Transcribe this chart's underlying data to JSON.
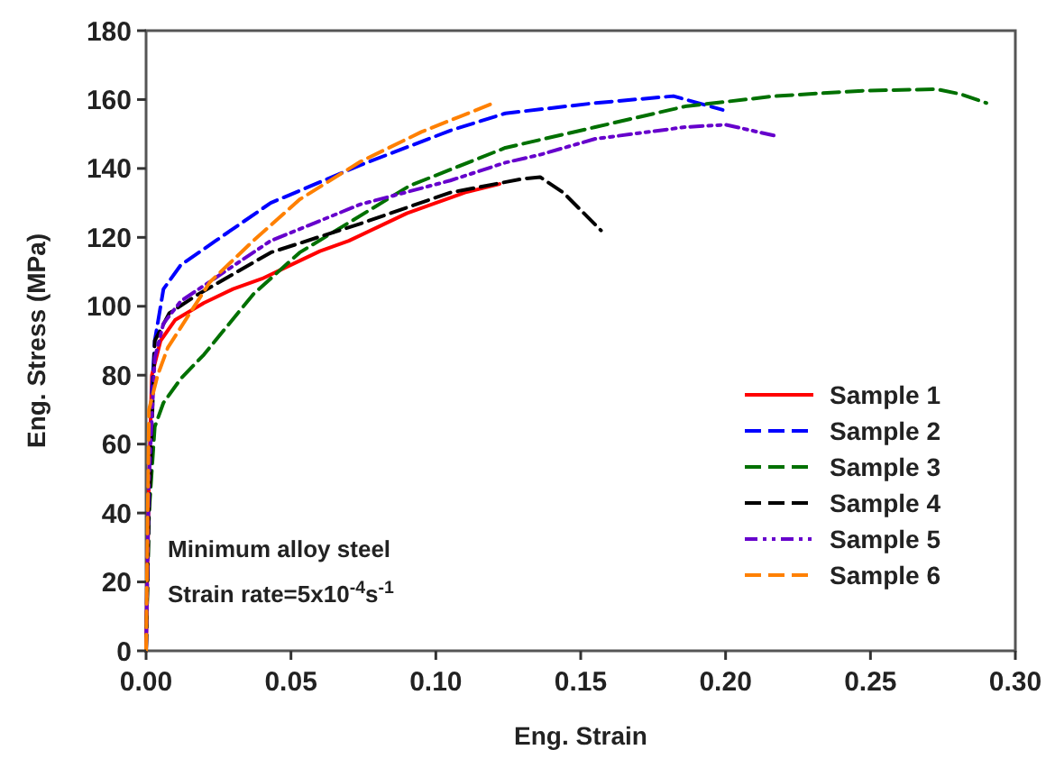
{
  "chart_data": {
    "type": "line",
    "xlabel": "Eng. Strain",
    "ylabel": "Eng. Stress (MPa)",
    "xlim": [
      0,
      0.3
    ],
    "ylim": [
      0,
      180
    ],
    "xticks": [
      {
        "value": 0,
        "label": "0.00"
      },
      {
        "value": 0.05,
        "label": "0.05"
      },
      {
        "value": 0.1,
        "label": "0.10"
      },
      {
        "value": 0.15,
        "label": "0.15"
      },
      {
        "value": 0.2,
        "label": "0.20"
      },
      {
        "value": 0.25,
        "label": "0.25"
      },
      {
        "value": 0.3,
        "label": "0.30"
      }
    ],
    "yticks": [
      0,
      20,
      40,
      60,
      80,
      100,
      120,
      140,
      160,
      180
    ],
    "grid": false,
    "legend": "bottom right",
    "annotations": [
      "Minimum alloy steel",
      "Strain rate=5x10$^{-4}$s$^{-1}$"
    ],
    "series": [
      {
        "name": "Sample 1",
        "color": "#ff0000",
        "line_style": "solid",
        "x": [
          0,
          0.001,
          0.002,
          0.005,
          0.01,
          0.02,
          0.03,
          0.04,
          0.05,
          0.06,
          0.07,
          0.08,
          0.09,
          0.1,
          0.11,
          0.122
        ],
        "values": [
          0,
          50,
          80,
          90,
          96,
          101,
          105,
          108,
          112,
          116,
          119,
          123,
          127,
          130,
          133,
          135.5
        ]
      },
      {
        "name": "Sample 2",
        "color": "#0000ff",
        "line_style": "dashed",
        "x": [
          0,
          0.001,
          0.003,
          0.006,
          0.012,
          0.024,
          0.043,
          0.074,
          0.105,
          0.124,
          0.155,
          0.182,
          0.199
        ],
        "values": [
          0,
          60,
          90,
          105,
          112,
          119,
          130,
          141,
          151,
          156,
          159,
          161,
          157
        ]
      },
      {
        "name": "Sample 3",
        "color": "#007000",
        "line_style": "dashed",
        "x": [
          0,
          0.001,
          0.003,
          0.006,
          0.012,
          0.02,
          0.037,
          0.053,
          0.091,
          0.124,
          0.155,
          0.186,
          0.217,
          0.248,
          0.273,
          0.281,
          0.29
        ],
        "values": [
          0,
          40,
          65,
          72,
          79,
          86,
          103.5,
          115.6,
          135,
          146,
          152,
          158,
          161,
          162.6,
          163,
          161.6,
          159
        ]
      },
      {
        "name": "Sample 4",
        "color": "#000000",
        "line_style": "dashed",
        "x": [
          0,
          0.001,
          0.003,
          0.008,
          0.018,
          0.043,
          0.074,
          0.105,
          0.13,
          0.136,
          0.144,
          0.157
        ],
        "values": [
          0,
          40,
          90,
          98,
          103.5,
          115.6,
          124,
          133,
          137,
          137.5,
          133,
          122
        ]
      },
      {
        "name": "Sample 5",
        "color": "#6600cc",
        "line_style": "dotted",
        "x": [
          0,
          0.001,
          0.003,
          0.006,
          0.012,
          0.043,
          0.074,
          0.105,
          0.124,
          0.136,
          0.155,
          0.186,
          0.2,
          0.217
        ],
        "values": [
          0,
          50,
          85,
          95,
          101.5,
          119,
          129.6,
          136.5,
          141.7,
          144,
          148.6,
          152,
          152.7,
          149.5
        ]
      },
      {
        "name": "Sample 6",
        "color": "#ff8000",
        "line_style": "dashed",
        "x": [
          0,
          0.001,
          0.004,
          0.0075,
          0.022,
          0.037,
          0.053,
          0.074,
          0.095,
          0.12
        ],
        "values": [
          0,
          70,
          80,
          88,
          107,
          119,
          131,
          142,
          150.6,
          159
        ]
      }
    ]
  }
}
